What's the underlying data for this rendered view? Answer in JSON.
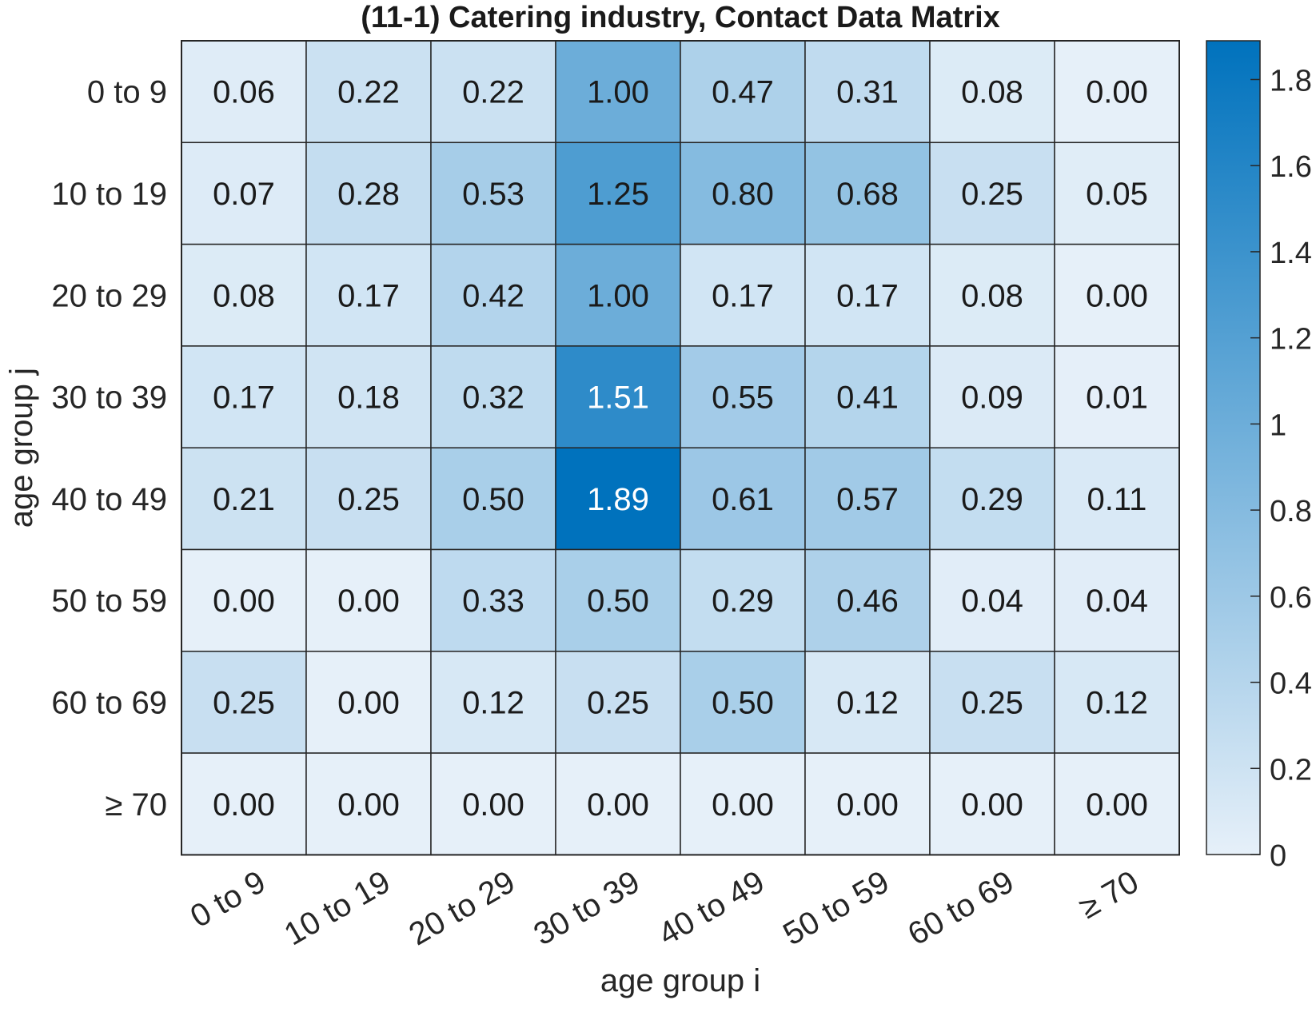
{
  "chart_data": {
    "type": "heatmap",
    "title": "(11-1) Catering industry, Contact Data Matrix",
    "xlabel": "age group i",
    "ylabel": "age group j",
    "x_categories": [
      "0 to 9",
      "10 to 19",
      "20 to 29",
      "30 to 39",
      "40 to 49",
      "50 to 59",
      "60 to 69",
      "≥ 70"
    ],
    "y_categories": [
      "0 to 9",
      "10 to 19",
      "20 to 29",
      "30 to 39",
      "40 to 49",
      "50 to 59",
      "60 to 69",
      "≥ 70"
    ],
    "values": [
      [
        0.06,
        0.22,
        0.22,
        1.0,
        0.47,
        0.31,
        0.08,
        0.0
      ],
      [
        0.07,
        0.28,
        0.53,
        1.25,
        0.8,
        0.68,
        0.25,
        0.05
      ],
      [
        0.08,
        0.17,
        0.42,
        1.0,
        0.17,
        0.17,
        0.08,
        0.0
      ],
      [
        0.17,
        0.18,
        0.32,
        1.51,
        0.55,
        0.41,
        0.09,
        0.01
      ],
      [
        0.21,
        0.25,
        0.5,
        1.89,
        0.61,
        0.57,
        0.29,
        0.11
      ],
      [
        0.0,
        0.0,
        0.33,
        0.5,
        0.29,
        0.46,
        0.04,
        0.04
      ],
      [
        0.25,
        0.0,
        0.12,
        0.25,
        0.5,
        0.12,
        0.25,
        0.12
      ],
      [
        0.0,
        0.0,
        0.0,
        0.0,
        0.0,
        0.0,
        0.0,
        0.0
      ]
    ],
    "colorbar": {
      "min": 0,
      "max": 1.89,
      "ticks": [
        0,
        0.2,
        0.4,
        0.6,
        0.8,
        1,
        1.2,
        1.4,
        1.6,
        1.8
      ],
      "tick_labels": [
        "0",
        "0.2",
        "0.4",
        "0.6",
        "0.8",
        "1",
        "1.2",
        "1.4",
        "1.6",
        "1.8"
      ],
      "color_low": "#e6f0f9",
      "color_high": "#0072bd"
    },
    "legend": "colorbar-right",
    "grid": true
  }
}
